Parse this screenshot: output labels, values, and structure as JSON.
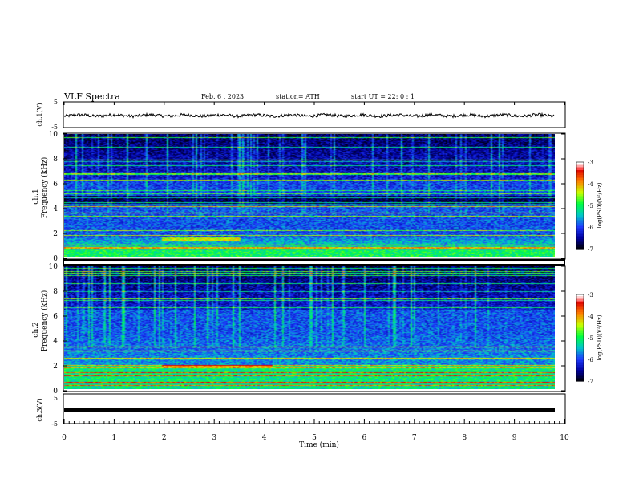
{
  "header": {
    "title": "VLF  Spectra",
    "date": "Feb. 6  , 2023",
    "station": "station= ATH",
    "start_ut": "start  UT  =    22: 0   : 1"
  },
  "chart_data": [
    {
      "type": "line",
      "panel": "ch1-waveform",
      "ylabel": "ch.1(V)",
      "ylim": [
        -5,
        5
      ],
      "yticks": [
        "5",
        "-5"
      ],
      "xlim": [
        0,
        10
      ],
      "series": [
        {
          "values_description_free": true
        }
      ],
      "trace_level": -0.3,
      "trace_amplitude": 0.6,
      "trace_end_min": 9.8
    },
    {
      "type": "heatmap",
      "panel": "ch1-spectrogram",
      "ylabel": "ch.1\nFrequency  (kHz)",
      "ylim": [
        0,
        10
      ],
      "yticks": [
        "0",
        "2",
        "4",
        "6",
        "8",
        "10"
      ],
      "xlim": [
        0,
        10
      ],
      "data_end_min": 9.8,
      "colorbar": {
        "label": "log(PSD)(V²/Hz)",
        "range": [
          -7,
          -3
        ],
        "ticks": [
          "-3",
          "-4",
          "-5",
          "-6",
          "-7"
        ]
      }
    },
    {
      "type": "heatmap",
      "panel": "ch2-spectrogram",
      "ylabel": "ch.2\nFrequency  (kHz)",
      "ylim": [
        0,
        10
      ],
      "yticks": [
        "0",
        "2",
        "4",
        "6",
        "8",
        "10"
      ],
      "xlim": [
        0,
        10
      ],
      "data_end_min": 9.8,
      "colorbar": {
        "label": "log(PSD)(V²/Hz)",
        "range": [
          -7,
          -3
        ],
        "ticks": [
          "-3",
          "-4",
          "-5",
          "-6",
          "-7"
        ]
      }
    },
    {
      "type": "line",
      "panel": "ch3-waveform",
      "ylabel": "ch.3(V)",
      "ylim": [
        -5,
        5
      ],
      "yticks": [
        "5",
        "-5"
      ],
      "xlim": [
        0,
        10
      ],
      "trace_level": 0,
      "trace_amplitude": 0.1,
      "trace_end_min": 9.8
    }
  ],
  "xaxis": {
    "label": "Time  (min)",
    "ticks": [
      "0",
      "1",
      "2",
      "3",
      "4",
      "5",
      "6",
      "7",
      "8",
      "9",
      "10"
    ]
  },
  "labels": {
    "ch1_v": "ch.1(V)",
    "ch1_freq_a": "ch.1",
    "ch1_freq_b": "Frequency  (kHz)",
    "ch2_freq_a": "ch.2",
    "ch2_freq_b": "Frequency  (kHz)",
    "ch3_v": "ch.3(V)",
    "colorbar_label": "log(PSD)(V²/Hz)"
  },
  "colors": {
    "colormap": [
      "#000000",
      "#0000a0",
      "#1e3cff",
      "#00c8c8",
      "#00ff40",
      "#c8ff00",
      "#ff8000",
      "#e00000",
      "#ffffff"
    ]
  }
}
